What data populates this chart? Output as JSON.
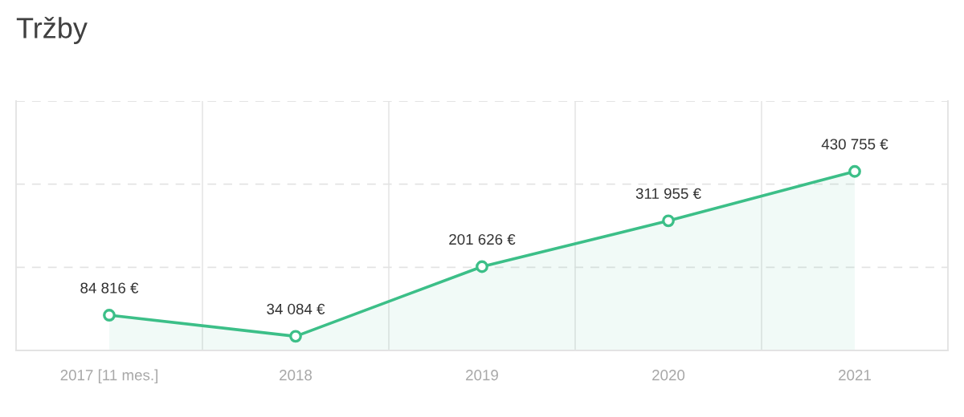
{
  "chart_data": {
    "type": "area",
    "title": "Tržby",
    "categories": [
      "2017 [11 mes.]",
      "2018",
      "2019",
      "2020",
      "2021"
    ],
    "series": [
      {
        "color": "#3cbf88",
        "values": [
          84816,
          34084,
          201626,
          311955,
          430755
        ],
        "value_labels": [
          "84 816 €",
          "34 084 €",
          "201 626 €",
          "311 955 €",
          "430 755 €"
        ]
      }
    ],
    "ylim": [
      0,
      600000
    ],
    "yticks": [
      {
        "value": 0,
        "label": null
      },
      {
        "value": 200000,
        "label": null
      },
      {
        "value": 400000,
        "label": null
      },
      {
        "value": 600000,
        "label": null
      }
    ],
    "tick_labels": "x",
    "grid": true,
    "marker": "circle",
    "line_style": "solid"
  }
}
